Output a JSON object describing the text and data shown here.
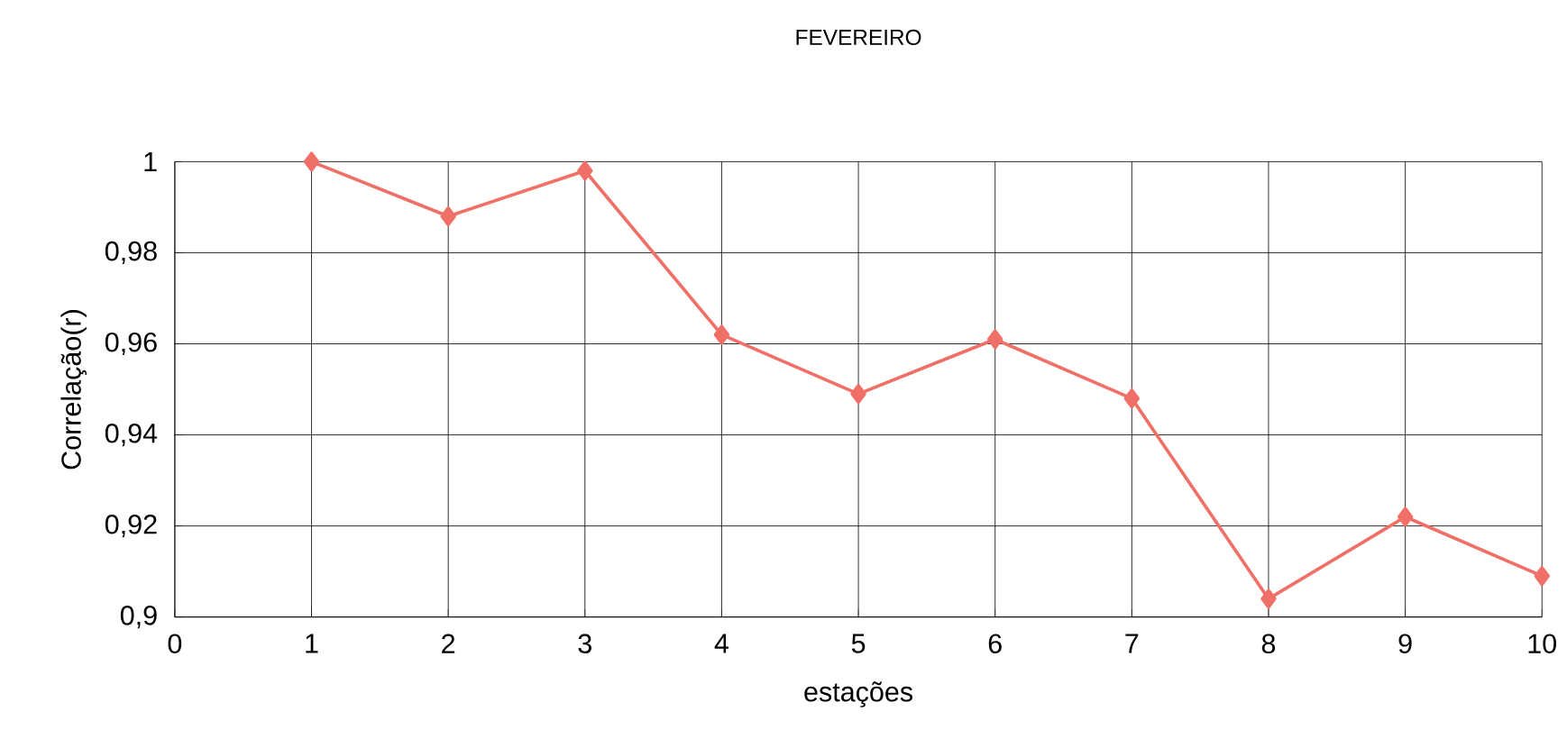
{
  "chart_data": {
    "type": "line",
    "title": "FEVEREIRO",
    "xlabel": "estações",
    "ylabel": "Correlação(r)",
    "x": [
      1,
      2,
      3,
      4,
      5,
      6,
      7,
      8,
      9,
      10
    ],
    "series": [
      {
        "color": "#f07068",
        "values": [
          1.0,
          0.988,
          0.998,
          0.962,
          0.949,
          0.961,
          0.948,
          0.904,
          0.922,
          0.909
        ]
      }
    ],
    "xlim": [
      0,
      10
    ],
    "xticks": [
      0,
      1,
      2,
      3,
      4,
      5,
      6,
      7,
      8,
      9,
      10
    ],
    "ylim": [
      0.9,
      1
    ],
    "yticks": [
      {
        "value": 0.9,
        "label": "0,9"
      },
      {
        "value": 0.92,
        "label": "0,92"
      },
      {
        "value": 0.94,
        "label": "0,94"
      },
      {
        "value": 0.96,
        "label": "0,96"
      },
      {
        "value": 0.98,
        "label": "0,98"
      },
      1
    ],
    "grid": true,
    "marker": "diamond",
    "line_style": "solid"
  }
}
